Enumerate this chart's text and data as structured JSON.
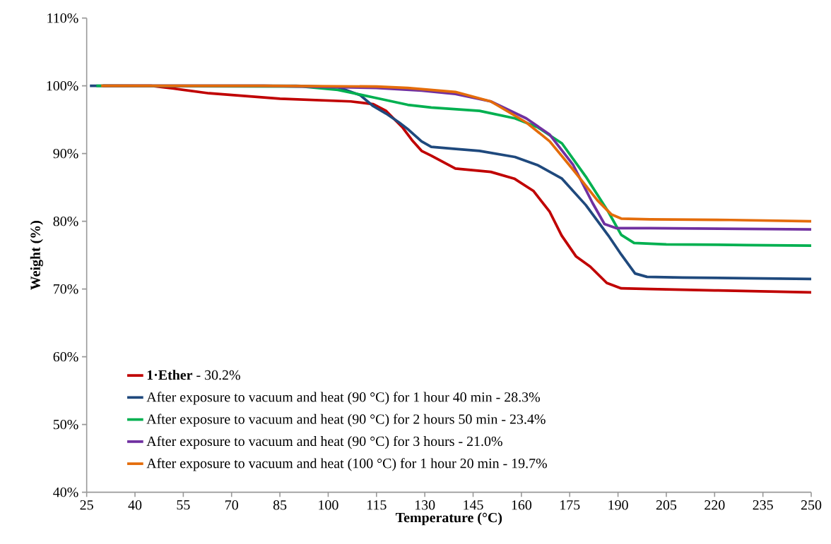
{
  "chart_data": {
    "type": "line",
    "xlabel": "Temperature (°C)",
    "ylabel": "Weight (%)",
    "xlim": [
      25,
      250
    ],
    "xticks": [
      25,
      40,
      55,
      70,
      85,
      100,
      115,
      130,
      145,
      160,
      175,
      190,
      205,
      220,
      235,
      250
    ],
    "ylim": [
      40,
      110
    ],
    "yticks": [
      {
        "value": 40,
        "label": "40%"
      },
      {
        "value": 50,
        "label": "50%"
      },
      {
        "value": 60,
        "label": "60%"
      },
      {
        "value": 70,
        "label": "70%"
      },
      {
        "value": 80,
        "label": "80%"
      },
      {
        "value": 90,
        "label": "90%"
      },
      {
        "value": 100,
        "label": "100%"
      },
      {
        "value": 110,
        "label": "110%"
      }
    ],
    "grid": false,
    "legend": "bottom left",
    "marker": "none",
    "line_style": "solid",
    "series": [
      {
        "name": "**1·Ether** - 30.2%",
        "color": "#c00000",
        "x": [
          30,
          45,
          52,
          63,
          85,
          107,
          114,
          118,
          123,
          126,
          129,
          132,
          139.5,
          150.5,
          157.8,
          163.7,
          168.8,
          172.5,
          177,
          181.4,
          186.5,
          191,
          200,
          220,
          250
        ],
        "values": [
          100,
          100,
          99.6,
          98.9,
          98.1,
          97.7,
          97.3,
          96.3,
          93.9,
          92,
          90.4,
          89.7,
          87.8,
          87.3,
          86.3,
          84.5,
          81.4,
          77.9,
          74.8,
          73.3,
          70.9,
          70.1,
          70,
          69.8,
          69.5
        ]
      },
      {
        "name": "After exposure to vacuum and heat (90 °C) for 1 hour 40 min - 28.3%",
        "color": "#1f497d",
        "x": [
          26,
          90,
          103,
          110,
          114,
          118,
          122,
          125,
          129,
          132,
          139,
          147,
          158,
          165,
          172.6,
          180,
          187,
          191,
          195.3,
          199,
          210,
          230,
          250
        ],
        "values": [
          100,
          100,
          99.8,
          98.6,
          97,
          95.9,
          94.6,
          93.5,
          91.8,
          91,
          90.7,
          90.4,
          89.5,
          88.3,
          86.3,
          82.4,
          77.9,
          75.1,
          72.3,
          71.8,
          71.7,
          71.6,
          71.5
        ]
      },
      {
        "name": "After exposure to vacuum and heat (90 °C) for 2 hours 50 min - 23.4%",
        "color": "#00b050",
        "x": [
          28,
          92,
          103,
          114,
          124.7,
          132,
          147,
          158,
          165,
          172.6,
          180,
          187,
          191,
          195,
          205,
          230,
          250
        ],
        "values": [
          100,
          99.9,
          99.4,
          98.3,
          97.2,
          96.8,
          96.3,
          95.2,
          93.9,
          91.5,
          86.6,
          81.4,
          78,
          76.8,
          76.6,
          76.5,
          76.4
        ]
      },
      {
        "name": "After exposure to vacuum and heat (90 °C) for 3 hours - 21.0%",
        "color": "#7030a0",
        "x": [
          30,
          80,
          115,
          129,
          139.5,
          150.5,
          161.5,
          168.8,
          176.1,
          182.1,
          185.8,
          189.4,
          200,
          225,
          250
        ],
        "values": [
          100,
          100,
          99.7,
          99.3,
          98.8,
          97.7,
          95.2,
          92.8,
          88.3,
          82.7,
          79.6,
          79,
          79,
          78.9,
          78.8
        ]
      },
      {
        "name": "After exposure to vacuum and heat (100 °C) for 1 hour 20 min - 19.7%",
        "color": "#e46c0a",
        "x": [
          29.5,
          80,
          115,
          124.7,
          139.5,
          150.5,
          161.5,
          168.8,
          176.1,
          183.6,
          188,
          191,
          200,
          225,
          250
        ],
        "values": [
          100,
          100,
          99.9,
          99.7,
          99.1,
          97.7,
          94.6,
          91.8,
          87.6,
          83.1,
          81,
          80.4,
          80.3,
          80.2,
          80
        ]
      }
    ]
  }
}
